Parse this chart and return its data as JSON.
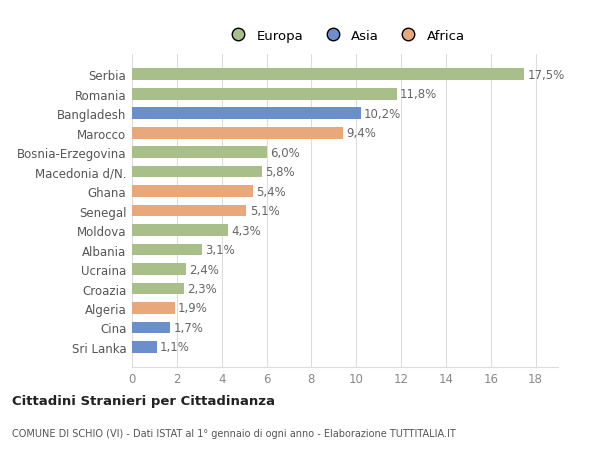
{
  "categories": [
    "Sri Lanka",
    "Cina",
    "Algeria",
    "Croazia",
    "Ucraina",
    "Albania",
    "Moldova",
    "Senegal",
    "Ghana",
    "Macedonia d/N.",
    "Bosnia-Erzegovina",
    "Marocco",
    "Bangladesh",
    "Romania",
    "Serbia"
  ],
  "values": [
    1.1,
    1.7,
    1.9,
    2.3,
    2.4,
    3.1,
    4.3,
    5.1,
    5.4,
    5.8,
    6.0,
    9.4,
    10.2,
    11.8,
    17.5
  ],
  "labels": [
    "1,1%",
    "1,7%",
    "1,9%",
    "2,3%",
    "2,4%",
    "3,1%",
    "4,3%",
    "5,1%",
    "5,4%",
    "5,8%",
    "6,0%",
    "9,4%",
    "10,2%",
    "11,8%",
    "17,5%"
  ],
  "colors": [
    "#6b8fca",
    "#6b8fca",
    "#e8a87c",
    "#a8bf8a",
    "#a8bf8a",
    "#a8bf8a",
    "#a8bf8a",
    "#e8a87c",
    "#e8a87c",
    "#a8bf8a",
    "#a8bf8a",
    "#e8a87c",
    "#6b8fca",
    "#a8bf8a",
    "#a8bf8a"
  ],
  "legend_labels": [
    "Europa",
    "Asia",
    "Africa"
  ],
  "legend_colors": [
    "#a8bf8a",
    "#6b8fca",
    "#e8a87c"
  ],
  "xlim": [
    0,
    19
  ],
  "xticks": [
    0,
    2,
    4,
    6,
    8,
    10,
    12,
    14,
    16,
    18
  ],
  "title": "Cittadini Stranieri per Cittadinanza",
  "subtitle": "COMUNE DI SCHIO (VI) - Dati ISTAT al 1° gennaio di ogni anno - Elaborazione TUTTITALIA.IT",
  "background_color": "#ffffff",
  "grid_color": "#dddddd",
  "bar_height": 0.6,
  "label_fontsize": 8.5,
  "tick_fontsize": 8.5,
  "ylabel_fontsize": 8.5
}
